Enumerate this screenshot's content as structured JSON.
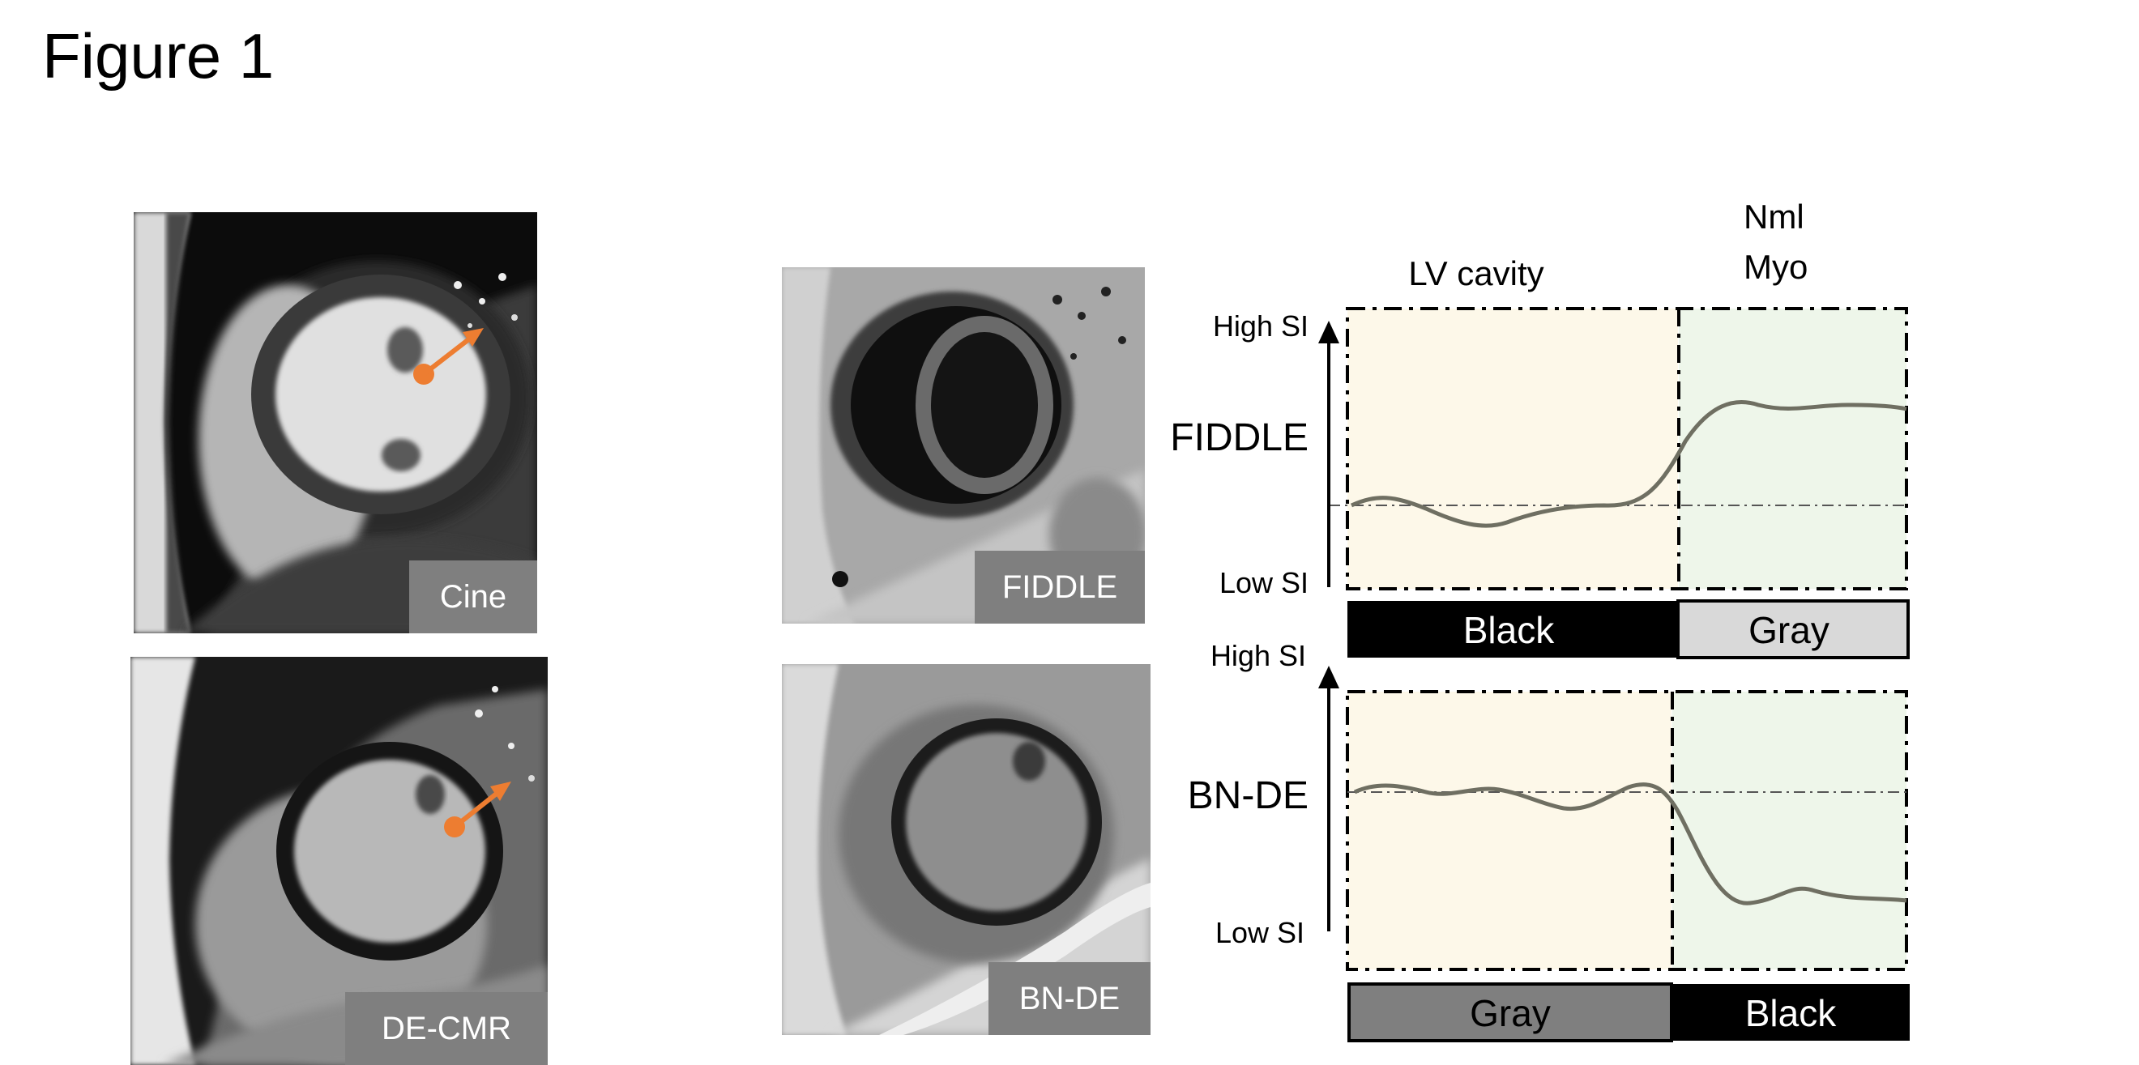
{
  "figure_title": "Figure 1",
  "image_panels": {
    "cine": "Cine",
    "decmr": "DE-CMR",
    "fiddle": "FIDDLE",
    "bnde": "BN-DE"
  },
  "diagram": {
    "region_labels": {
      "lv_cavity": "LV cavity",
      "nml_line1": "Nml",
      "nml_line2": "Myo"
    },
    "top_plot": {
      "method": "FIDDLE",
      "high": "High SI",
      "low": "Low SI",
      "bar_left": "Black",
      "bar_right": "Gray"
    },
    "bottom_plot": {
      "method": "BN-DE",
      "high": "High SI",
      "low": "Low SI",
      "bar_left": "Gray",
      "bar_right": "Black"
    }
  },
  "colors": {
    "lv_region": "#fdf8e9",
    "myo_region": "#eef6ea",
    "curve": "#6f6f62",
    "arrow": "#ed7d31",
    "label_gray": "#7f7f7f",
    "bar_black": "#000000",
    "bar_light_gray": "#d9d9d9"
  }
}
